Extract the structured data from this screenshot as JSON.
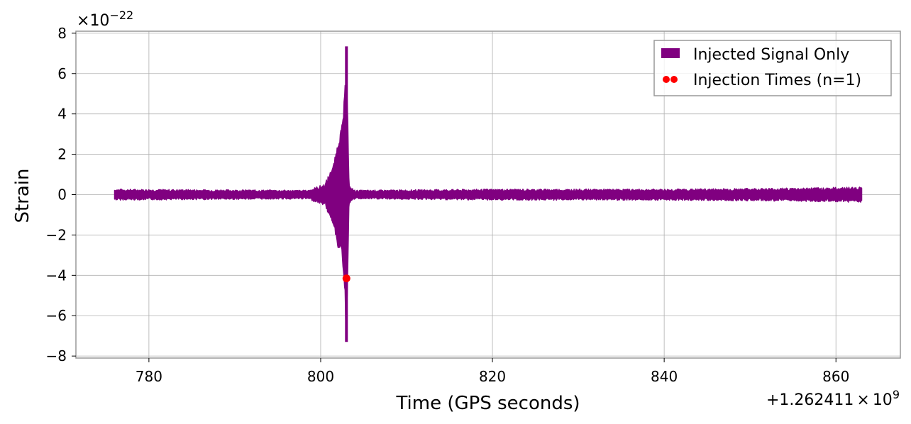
{
  "chart_data": {
    "type": "line",
    "xlabel": "Time (GPS seconds)",
    "ylabel": "Strain",
    "x_offset_label": "+1.262411",
    "x_offset_times": "×",
    "x_offset_base": "10",
    "x_offset_exp": "9",
    "y_scale_times": "×",
    "y_scale_base": "10",
    "y_scale_exp": "−22",
    "xlim": [
      771.5,
      867.5
    ],
    "ylim": [
      -8.1,
      8.1
    ],
    "xticks": [
      780,
      800,
      820,
      840,
      860
    ],
    "xtick_labels": [
      "780",
      "800",
      "820",
      "840",
      "860"
    ],
    "yticks": [
      -8,
      -6,
      -4,
      -2,
      0,
      2,
      4,
      6,
      8
    ],
    "ytick_labels": [
      "−8",
      "−6",
      "−4",
      "−2",
      "0",
      "2",
      "4",
      "6",
      "8"
    ],
    "grid": true,
    "legend_position": "top-right",
    "series": [
      {
        "name": "Injected Signal Only",
        "color": "#800080",
        "style": "band",
        "x_start": 776,
        "x_end": 863,
        "baseline_amplitude": 0.2,
        "envelope": [
          {
            "x": 776,
            "lo": -0.25,
            "hi": 0.25
          },
          {
            "x": 798.5,
            "lo": -0.2,
            "hi": 0.2
          },
          {
            "x": 800.5,
            "lo": -0.5,
            "hi": 0.5
          },
          {
            "x": 801.5,
            "lo": -1.5,
            "hi": 1.5
          },
          {
            "x": 802.1,
            "lo": -2.8,
            "hi": 2.8
          },
          {
            "x": 802.5,
            "lo": -3.0,
            "hi": 3.5
          },
          {
            "x": 802.8,
            "lo": -5.0,
            "hi": 5.0
          },
          {
            "x": 803.0,
            "lo": -7.3,
            "hi": 7.35
          },
          {
            "x": 803.3,
            "lo": -0.4,
            "hi": 0.4
          },
          {
            "x": 804,
            "lo": -0.2,
            "hi": 0.2
          },
          {
            "x": 820,
            "lo": -0.25,
            "hi": 0.25
          },
          {
            "x": 840,
            "lo": -0.25,
            "hi": 0.25
          },
          {
            "x": 855,
            "lo": -0.3,
            "hi": 0.3
          },
          {
            "x": 863,
            "lo": -0.35,
            "hi": 0.35
          }
        ]
      },
      {
        "name": "Injection Times (n=1)",
        "color": "#ff0000",
        "style": "points",
        "points": [
          {
            "x": 803.0,
            "y": -4.15
          }
        ]
      }
    ]
  }
}
